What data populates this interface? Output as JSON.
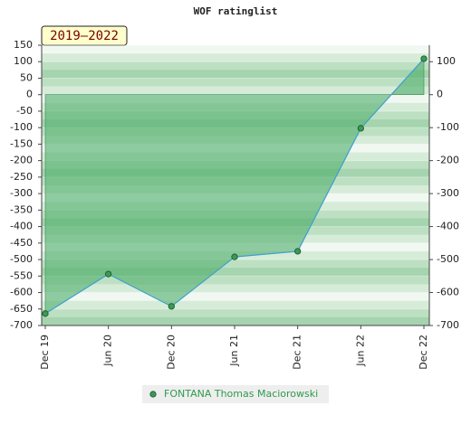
{
  "chart_data": {
    "type": "area",
    "title": "WOF ratinglist",
    "subtitle": "2019–2022",
    "categories": [
      "Dec 19",
      "Jun 20",
      "Dec 20",
      "Jun 21",
      "Dec 21",
      "Jun 22",
      "Dec 22"
    ],
    "series": [
      {
        "name": "FONTANA Thomas Maciorowski",
        "color": "#3f9fd0",
        "fill": "#4fae6a",
        "marker_color": "#3a9a55",
        "values": [
          -664,
          -544,
          -642,
          -492,
          -475,
          -102,
          109
        ]
      }
    ],
    "ylim": [
      -700,
      150
    ],
    "yticks": [
      150,
      100,
      50,
      0,
      -50,
      -100,
      -150,
      -200,
      -250,
      -300,
      -350,
      -400,
      -450,
      -500,
      -550,
      -600,
      -650,
      -700
    ],
    "y2lim": [
      -700,
      150
    ],
    "y2ticks": [
      100,
      0,
      -100,
      -200,
      -300,
      -400,
      -500,
      -600,
      -700
    ],
    "grid": true,
    "legend": "bottom"
  }
}
